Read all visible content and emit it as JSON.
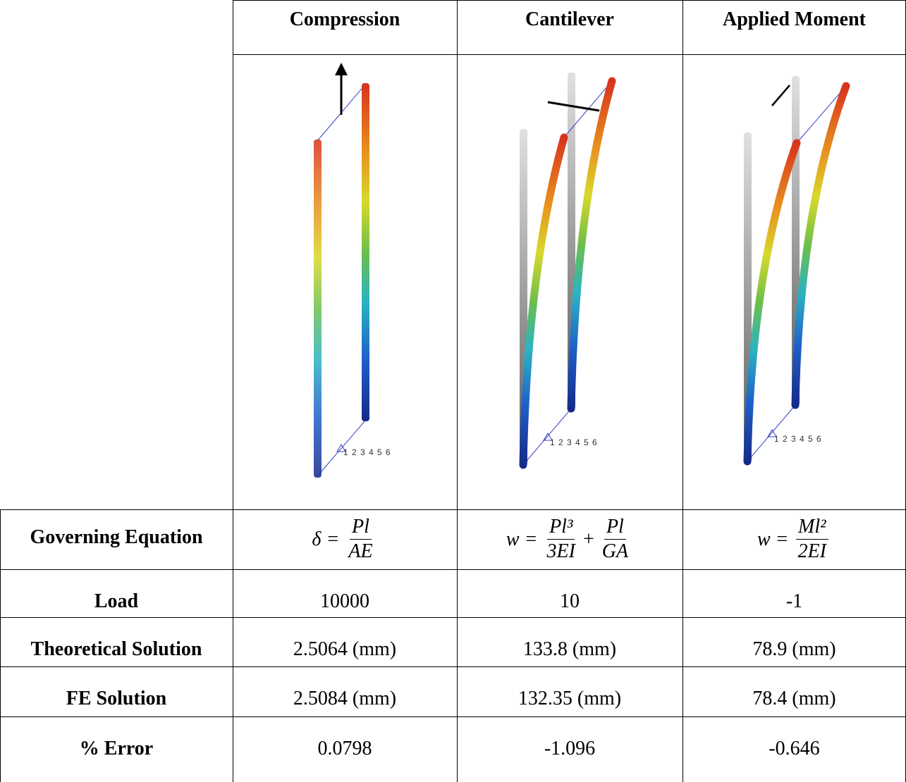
{
  "column_headers": [
    "Compression",
    "Cantilever",
    "Applied Moment"
  ],
  "figures": [
    {
      "label": "1 2 3 4 5 6"
    },
    {
      "label": "1 2 3 4 5 6"
    },
    {
      "label": "1 2 3 4 5 6"
    }
  ],
  "equation_row": {
    "label": "Governing Equation",
    "equations": [
      {
        "lhs": "δ =",
        "fractions": [
          {
            "num": "Pl",
            "den": "AE"
          }
        ],
        "operators": []
      },
      {
        "lhs": "w =",
        "fractions": [
          {
            "num": "Pl³",
            "den": "3EI"
          },
          {
            "num": "Pl",
            "den": "GA"
          }
        ],
        "operators": [
          "+"
        ]
      },
      {
        "lhs": "w =",
        "fractions": [
          {
            "num": "Ml²",
            "den": "2EI"
          }
        ],
        "operators": []
      }
    ]
  },
  "rows": [
    {
      "label": "Load",
      "cells": [
        "10000",
        "10",
        "-1"
      ]
    },
    {
      "label": "Theoretical Solution",
      "cells": [
        "2.5064 (mm)",
        "133.8 (mm)",
        "78.9 (mm)"
      ]
    },
    {
      "label": "FE Solution",
      "cells": [
        "2.5084 (mm)",
        "132.35 (mm)",
        "78.4 (mm)"
      ]
    },
    {
      "label": "% Error",
      "cells": [
        "0.0798",
        "-1.096",
        "-0.646"
      ]
    }
  ]
}
